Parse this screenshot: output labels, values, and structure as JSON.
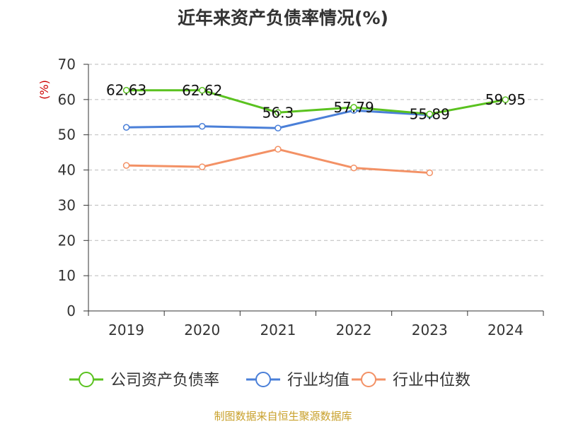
{
  "title": "近年来资产负债率情况(%)",
  "source": "制图数据来自恒生聚源数据库",
  "colors": {
    "series_1": "#5ac21f",
    "series_2": "#4a7fd8",
    "series_3": "#f39165",
    "unit": "#cc0000",
    "text": "#333333",
    "grid": "#bbbbbb",
    "source": "#c8a02a"
  },
  "chart_data": {
    "type": "line",
    "ylabel": "(%)",
    "categories": [
      "2019",
      "2020",
      "2021",
      "2022",
      "2023",
      "2024"
    ],
    "ylim": [
      0,
      70
    ],
    "yticks": [
      0,
      10,
      20,
      30,
      40,
      50,
      60,
      70
    ],
    "grid": "horizontal dashed",
    "legend": "bottom",
    "series": [
      {
        "name": "公司资产负债率",
        "values": [
          62.63,
          62.62,
          56.3,
          57.79,
          55.89,
          59.95
        ],
        "labels": [
          "62.63",
          "62.62",
          "56.3",
          "57.79",
          "55.89",
          "59.95"
        ]
      },
      {
        "name": "行业均值",
        "values": [
          52.1,
          52.4,
          51.9,
          56.9,
          55.6,
          null
        ]
      },
      {
        "name": "行业中位数",
        "values": [
          41.3,
          40.9,
          45.9,
          40.6,
          39.2,
          null
        ]
      }
    ]
  }
}
